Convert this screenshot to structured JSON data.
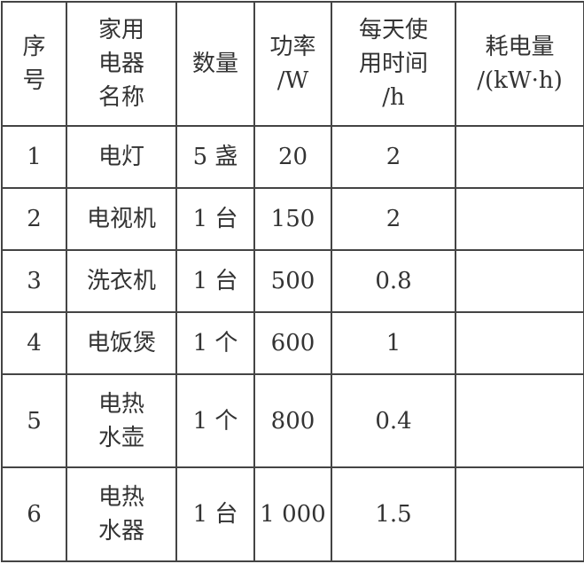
{
  "header": {
    "index": [
      "序",
      "号"
    ],
    "name": [
      "家用",
      "电器",
      "名称"
    ],
    "quantity": [
      "数量"
    ],
    "power": [
      "功率",
      "/W"
    ],
    "time": [
      "每天使",
      "用时间",
      "/h"
    ],
    "energy": [
      "耗电量",
      "/(kW·h)"
    ]
  },
  "rows": [
    {
      "index": "1",
      "name": [
        "电灯"
      ],
      "quantity": "5 盏",
      "power": "20",
      "time": "2",
      "energy": ""
    },
    {
      "index": "2",
      "name": [
        "电视机"
      ],
      "quantity": "1 台",
      "power": "150",
      "time": "2",
      "energy": ""
    },
    {
      "index": "3",
      "name": [
        "洗衣机"
      ],
      "quantity": "1 台",
      "power": "500",
      "time": "0.8",
      "energy": ""
    },
    {
      "index": "4",
      "name": [
        "电饭煲"
      ],
      "quantity": "1 个",
      "power": "600",
      "time": "1",
      "energy": ""
    },
    {
      "index": "5",
      "name": [
        "电热",
        "水壶"
      ],
      "quantity": "1 个",
      "power": "800",
      "time": "0.4",
      "energy": ""
    },
    {
      "index": "6",
      "name": [
        "电热",
        "水器"
      ],
      "quantity": "1 台",
      "power": "1 000",
      "time": "1.5",
      "energy": ""
    }
  ]
}
